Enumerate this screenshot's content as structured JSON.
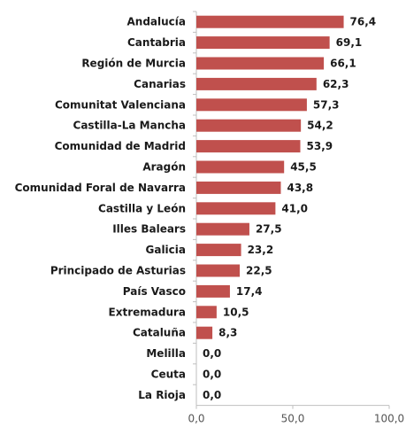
{
  "chart_data": {
    "type": "bar",
    "orientation": "horizontal",
    "categories": [
      "Andalucía",
      "Cantabria",
      "Región de Murcia",
      "Canarias",
      "Comunitat Valenciana",
      "Castilla-La Mancha",
      "Comunidad de Madrid",
      "Aragón",
      "Comunidad Foral de Navarra",
      "Castilla y León",
      "Illes Balears",
      "Galicia",
      "Principado de Asturias",
      "País Vasco",
      "Extremadura",
      "Cataluña",
      "Melilla",
      "Ceuta",
      "La Rioja"
    ],
    "values": [
      76.4,
      69.1,
      66.1,
      62.3,
      57.3,
      54.2,
      53.9,
      45.5,
      43.8,
      41.0,
      27.5,
      23.2,
      22.5,
      17.4,
      10.5,
      8.3,
      0.0,
      0.0,
      0.0
    ],
    "value_labels": [
      "76,4",
      "69,1",
      "66,1",
      "62,3",
      "57,3",
      "54,2",
      "53,9",
      "45,5",
      "43,8",
      "41,0",
      "27,5",
      "23,2",
      "22,5",
      "17,4",
      "10,5",
      "8,3",
      "0,0",
      "0,0",
      "0,0"
    ],
    "x_ticks": [
      "0,0",
      "50,0",
      "100,0"
    ],
    "xlim": [
      0,
      100
    ],
    "title": "",
    "xlabel": "",
    "ylabel": "",
    "grid": false,
    "bar_color": "#c0504d",
    "axis_color": "#bfbfbf"
  }
}
